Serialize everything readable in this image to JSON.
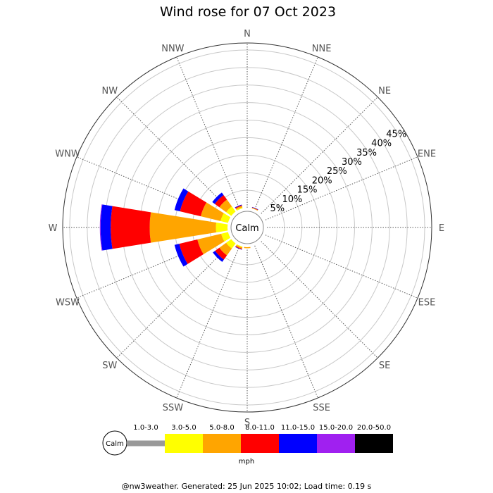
{
  "title": "Wind rose for 07 Oct 2023",
  "footer": "@nw3weather. Generated: 25 Jun 2025 10:02; Load time: 0.19 s",
  "calm_label": "Calm",
  "unit_label": "mph",
  "chart_data": {
    "type": "windrose",
    "title": "Wind rose for 07 Oct 2023",
    "directions": [
      "N",
      "NNE",
      "NE",
      "ENE",
      "E",
      "ESE",
      "SE",
      "SSE",
      "S",
      "SSW",
      "SW",
      "WSW",
      "W",
      "WNW",
      "NW",
      "NNW"
    ],
    "radial_ticks": [
      "5%",
      "10%",
      "15%",
      "20%",
      "25%",
      "30%",
      "35%",
      "40%",
      "45%"
    ],
    "radial_tick_values": [
      5,
      10,
      15,
      20,
      25,
      30,
      35,
      40,
      45
    ],
    "rmax": 47,
    "speed_bins": [
      {
        "label": "1.0-3.0",
        "color": "#999999"
      },
      {
        "label": "3.0-5.0",
        "color": "#ffff00"
      },
      {
        "label": "5.0-8.0",
        "color": "#ffa500"
      },
      {
        "label": "8.0-11.0",
        "color": "#ff0000"
      },
      {
        "label": "11.0-15.0",
        "color": "#0000ff"
      },
      {
        "label": "15.0-20.0",
        "color": "#a020f0"
      },
      {
        "label": "20.0-50.0",
        "color": "#000000"
      }
    ],
    "series": [
      {
        "direction": "NNE",
        "cumulative": [
          0.0,
          0.0,
          0.2,
          0.3,
          0.4,
          0.4,
          0.4
        ]
      },
      {
        "direction": "NNW",
        "cumulative": [
          0.0,
          0.3,
          0.7,
          0.9,
          1.1,
          1.1,
          1.1
        ]
      },
      {
        "direction": "NW",
        "cumulative": [
          0.0,
          1.8,
          4.2,
          5.8,
          6.7,
          6.7,
          6.7
        ]
      },
      {
        "direction": "WNW",
        "cumulative": [
          0.0,
          2.2,
          8.0,
          14.1,
          15.7,
          15.7,
          15.7
        ]
      },
      {
        "direction": "W",
        "cumulative": [
          0.0,
          3.3,
          22.2,
          33.3,
          36.2,
          36.4,
          36.4
        ]
      },
      {
        "direction": "WSW",
        "cumulative": [
          0.0,
          2.0,
          9.0,
          14.3,
          15.7,
          15.7,
          15.7
        ]
      },
      {
        "direction": "SW",
        "cumulative": [
          0.0,
          1.8,
          4.2,
          5.7,
          6.5,
          6.5,
          6.5
        ]
      },
      {
        "direction": "SSW",
        "cumulative": [
          0.0,
          0.2,
          0.6,
          0.8,
          0.9,
          0.9,
          0.9
        ]
      },
      {
        "direction": "S",
        "cumulative": [
          0.0,
          0.0,
          0.3,
          0.3,
          0.3,
          0.3,
          0.3
        ]
      }
    ],
    "grid": true
  }
}
